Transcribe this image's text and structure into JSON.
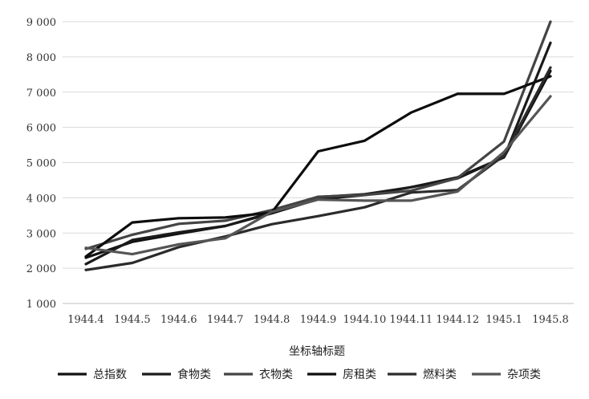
{
  "chart_data": {
    "type": "line",
    "xlabel": "坐标轴标题",
    "x": [
      "1944.4",
      "1944.5",
      "1944.6",
      "1944.7",
      "1944.8",
      "1944.9",
      "1944.10",
      "1944.11",
      "1944.12",
      "1945.1",
      "1945.8"
    ],
    "y_ticks": [
      "1 000",
      "2 000",
      "3 000",
      "4 000",
      "5 000",
      "6 000",
      "7 000",
      "8 000",
      "9 000"
    ],
    "ylim": [
      1000,
      9000
    ],
    "grid": true,
    "legend_position": "bottom",
    "series": [
      {
        "name": "总指数",
        "color": "#111111",
        "values": [
          2300,
          2750,
          2980,
          3200,
          3560,
          3960,
          4080,
          4300,
          4580,
          5150,
          7600
        ]
      },
      {
        "name": "食物类",
        "color": "#1a1a1a",
        "values": [
          2120,
          2800,
          3020,
          3200,
          3580,
          4020,
          4100,
          4300,
          4550,
          5150,
          8400
        ]
      },
      {
        "name": "衣物类",
        "color": "#444444",
        "values": [
          2550,
          2950,
          3260,
          3350,
          3650,
          4030,
          4080,
          4200,
          4560,
          5600,
          9000
        ]
      },
      {
        "name": "房租类",
        "color": "#0d0d0d",
        "values": [
          2330,
          3300,
          3420,
          3440,
          3580,
          5320,
          5620,
          6420,
          6950,
          6950,
          7450
        ]
      },
      {
        "name": "燃料类",
        "color": "#2b2b2b",
        "values": [
          1950,
          2150,
          2600,
          2900,
          3250,
          3480,
          3730,
          4150,
          4220,
          5200,
          7700
        ]
      },
      {
        "name": "杂项类",
        "color": "#555555",
        "values": [
          2580,
          2400,
          2680,
          2850,
          3600,
          3950,
          3920,
          3920,
          4180,
          5300,
          6880
        ]
      }
    ]
  }
}
